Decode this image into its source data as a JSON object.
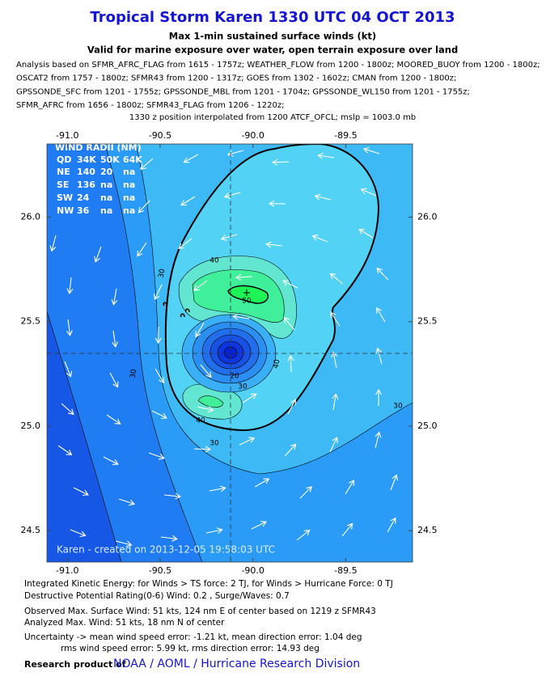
{
  "header": {
    "title": "Tropical Storm Karen 1330 UTC 04 OCT 2013",
    "subtitle": "Max 1-min sustained surface winds (kt)",
    "validity": "Valid for marine exposure over water, open terrain exposure over land"
  },
  "analysis_lines": [
    "Analysis based on SFMR_AFRC_FLAG from 1615 - 1757z; WEATHER_FLOW from 1200 - 1800z; MOORED_BUOY from 1200 - 1800z;",
    "OSCAT2 from 1757 - 1800z; SFMR43 from 1200 - 1317z; GOES from 1302 - 1602z; CMAN from 1200 - 1800z;",
    "GPSSONDE_SFC from 1201 - 1755z; GPSSONDE_MBL from 1201 - 1704z; GPSSONDE_WL150 from 1201 - 1755z;",
    "SFMR_AFRC from 1656 - 1800z; SFMR43_FLAG from 1206 - 1220z;"
  ],
  "position_note": "1330 z position interpolated from 1200 ATCF_OFCL; mslp = 1003.0 mb",
  "map": {
    "xlim": [
      -91.11,
      -89.14
    ],
    "ylim": [
      24.35,
      26.35
    ],
    "xticks": [
      {
        "value": -91,
        "label": "-91.0"
      },
      {
        "value": -90.5,
        "label": "-90.5"
      },
      {
        "value": -90,
        "label": "-90.0"
      },
      {
        "value": -89.5,
        "label": "-89.5"
      }
    ],
    "yticks": [
      {
        "value": 24.5,
        "label": "24.5"
      },
      {
        "value": 25,
        "label": "25.0"
      },
      {
        "value": 25.5,
        "label": "25.5"
      },
      {
        "value": 26,
        "label": "26.0"
      }
    ],
    "wind_radii": {
      "title": "WIND RADII (NM)",
      "header": [
        "QD",
        "34K",
        "50K",
        "64K"
      ],
      "rows": [
        [
          "NE",
          140,
          20,
          "na"
        ],
        [
          "SE",
          136,
          "na",
          "na"
        ],
        [
          "SW",
          24,
          "na",
          "na"
        ],
        [
          "NW",
          36,
          "na",
          "na"
        ]
      ]
    },
    "contour_labels": [
      "30",
      "40",
      "50",
      "40",
      "20",
      "30",
      "40",
      "30",
      "30",
      "30"
    ],
    "credit": "Karen - created on 2013-12-05 19:58:03 UTC"
  },
  "footer": {
    "lines": [
      "Integrated Kinetic Energy: for Winds > TS force: 2 TJ, for Winds > Hurricane Force: 0 TJ",
      "Destructive Potential Rating(0-6)  Wind: 0.2 , Surge/Waves: 0.7",
      "Observed Max. Surface Wind: 51 kts, 124 nm E of center based on 1219 z SFMR43",
      "Analyzed Max. Wind: 51 kts, 18 nm  N of center",
      "Uncertainty -> mean wind speed error:  -1.21 kt, mean direction error: 1.04 deg",
      "rms wind speed error: 5.99 kt, rms direction error: 14.93 deg"
    ],
    "research_label": "Research product of",
    "org": "NOAA / AOML / Hurricane Research Division"
  }
}
